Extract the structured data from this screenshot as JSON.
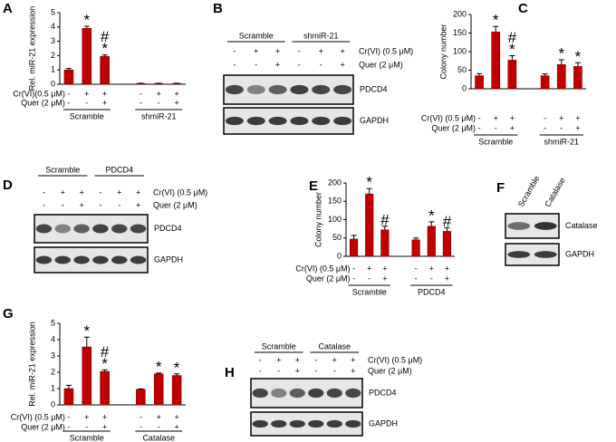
{
  "chart_data": [
    {
      "type": "bar",
      "label": "A",
      "ylabel": "Rel. miR-21 expression",
      "color": "#c00000",
      "values": [
        1.0,
        3.9,
        1.95,
        0.05,
        0.05,
        0.05
      ],
      "errors": [
        0.1,
        0.15,
        0.1,
        0.02,
        0.02,
        0.02
      ],
      "annotations": [
        null,
        [
          "*"
        ],
        [
          "#",
          "*"
        ],
        null,
        null,
        null
      ],
      "ylim": [
        0,
        5
      ],
      "yticks": [
        0,
        1,
        2,
        3,
        4,
        5
      ],
      "rows": [
        {
          "label": "Cr(VI)(0.5 μM)",
          "signs": [
            "-",
            "+",
            "+",
            "-",
            "+",
            "+"
          ]
        },
        {
          "label": "Quer (2 μM)",
          "signs": [
            "-",
            "-",
            "+",
            "-",
            "-",
            "+"
          ]
        }
      ],
      "groups": [
        "Scramble",
        "shmiR-21"
      ]
    },
    {
      "type": "bar",
      "label": "C",
      "ylabel": "Colony number",
      "color": "#c00000",
      "values": [
        35,
        153,
        77,
        35,
        65,
        60
      ],
      "errors": [
        6,
        15,
        12,
        5,
        13,
        10
      ],
      "annotations": [
        null,
        [
          "*"
        ],
        [
          "#",
          "*"
        ],
        null,
        [
          "*"
        ],
        [
          "*"
        ]
      ],
      "ylim": [
        0,
        200
      ],
      "yticks": [
        0,
        50,
        100,
        150,
        200
      ],
      "rows": [
        {
          "label": "Cr(VI) (0.5 μM)",
          "signs": [
            "-",
            "+",
            "+",
            "-",
            "+",
            "+"
          ]
        },
        {
          "label": "Quer (2 μM)",
          "signs": [
            "-",
            "-",
            "+",
            "-",
            "-",
            "+"
          ]
        }
      ],
      "groups": [
        "Scramble",
        "shmiR-21"
      ]
    },
    {
      "type": "bar",
      "label": "E",
      "ylabel": "Colony number",
      "color": "#c00000",
      "values": [
        47,
        170,
        72,
        45,
        82,
        68
      ],
      "errors": [
        10,
        15,
        10,
        5,
        12,
        10
      ],
      "annotations": [
        null,
        [
          "*"
        ],
        [
          "#"
        ],
        null,
        [
          "*"
        ],
        [
          "#"
        ]
      ],
      "ylim": [
        0,
        200
      ],
      "yticks": [
        0,
        50,
        100,
        150,
        200
      ],
      "rows": [
        {
          "label": "Cr(VI) (0.5 μM)",
          "signs": [
            "-",
            "+",
            "+",
            "-",
            "+",
            "+"
          ]
        },
        {
          "label": "Quer (2 μM)",
          "signs": [
            "-",
            "-",
            "+",
            "-",
            "-",
            "+"
          ]
        }
      ],
      "groups": [
        "Scramble",
        "PDCD4"
      ]
    },
    {
      "type": "bar",
      "label": "G",
      "ylabel": "Rel. miR-21 expression",
      "color": "#c00000",
      "values": [
        1.0,
        3.55,
        2.05,
        0.95,
        1.9,
        1.8
      ],
      "errors": [
        0.2,
        0.6,
        0.1,
        0.03,
        0.05,
        0.1
      ],
      "annotations": [
        null,
        [
          "*"
        ],
        [
          "#",
          "*"
        ],
        null,
        [
          "*"
        ],
        [
          "*"
        ]
      ],
      "ylim": [
        0,
        5
      ],
      "yticks": [
        0,
        1,
        2,
        3,
        4,
        5
      ],
      "rows": [
        {
          "label": "Cr(VI) (0.5 μM)",
          "signs": [
            "-",
            "+",
            "+",
            "-",
            "+",
            "+"
          ]
        },
        {
          "label": "Quer (2 μM)",
          "signs": [
            "-",
            "-",
            "+",
            "-",
            "-",
            "+"
          ]
        }
      ],
      "groups": [
        "Scramble",
        "Catalase"
      ]
    }
  ],
  "blots": [
    {
      "label": "B",
      "groups": [
        "Scramble",
        "shmiR-21"
      ],
      "rows": [
        {
          "label": "Cr(VI) (0.5 μM)",
          "signs": [
            "-",
            "+",
            "+",
            "-",
            "+",
            "+"
          ]
        },
        {
          "label": "Quer (2 μM)",
          "signs": [
            "-",
            "-",
            "+",
            "-",
            "-",
            "+"
          ]
        }
      ],
      "bands": [
        "PDCD4",
        "GAPDH"
      ]
    },
    {
      "label": "D",
      "groups": [
        "Scramble",
        "PDCD4"
      ],
      "rows": [
        {
          "label": "Cr(VI) (0.5 μM)",
          "signs": [
            "-",
            "+",
            "+",
            "-",
            "+",
            "+"
          ]
        },
        {
          "label": "Quer (2 μM)",
          "signs": [
            "-",
            "-",
            "+",
            "-",
            "-",
            "+"
          ]
        }
      ],
      "bands": [
        "PDCD4",
        "GAPDH"
      ]
    },
    {
      "label": "F",
      "groups": [
        "Scramble",
        "Catalase"
      ],
      "rows": [],
      "bands": [
        "Catalase",
        "GAPDH"
      ]
    },
    {
      "label": "H",
      "groups": [
        "Scramble",
        "Catalase"
      ],
      "rows": [
        {
          "label": "Cr(VI) (0.5 μM)",
          "signs": [
            "-",
            "+",
            "+",
            "-",
            "+",
            "+"
          ]
        },
        {
          "label": "Quer (2 μM)",
          "signs": [
            "-",
            "-",
            "+",
            "-",
            "-",
            "+"
          ]
        }
      ],
      "bands": [
        "PDCD4",
        "GAPDH"
      ]
    }
  ]
}
